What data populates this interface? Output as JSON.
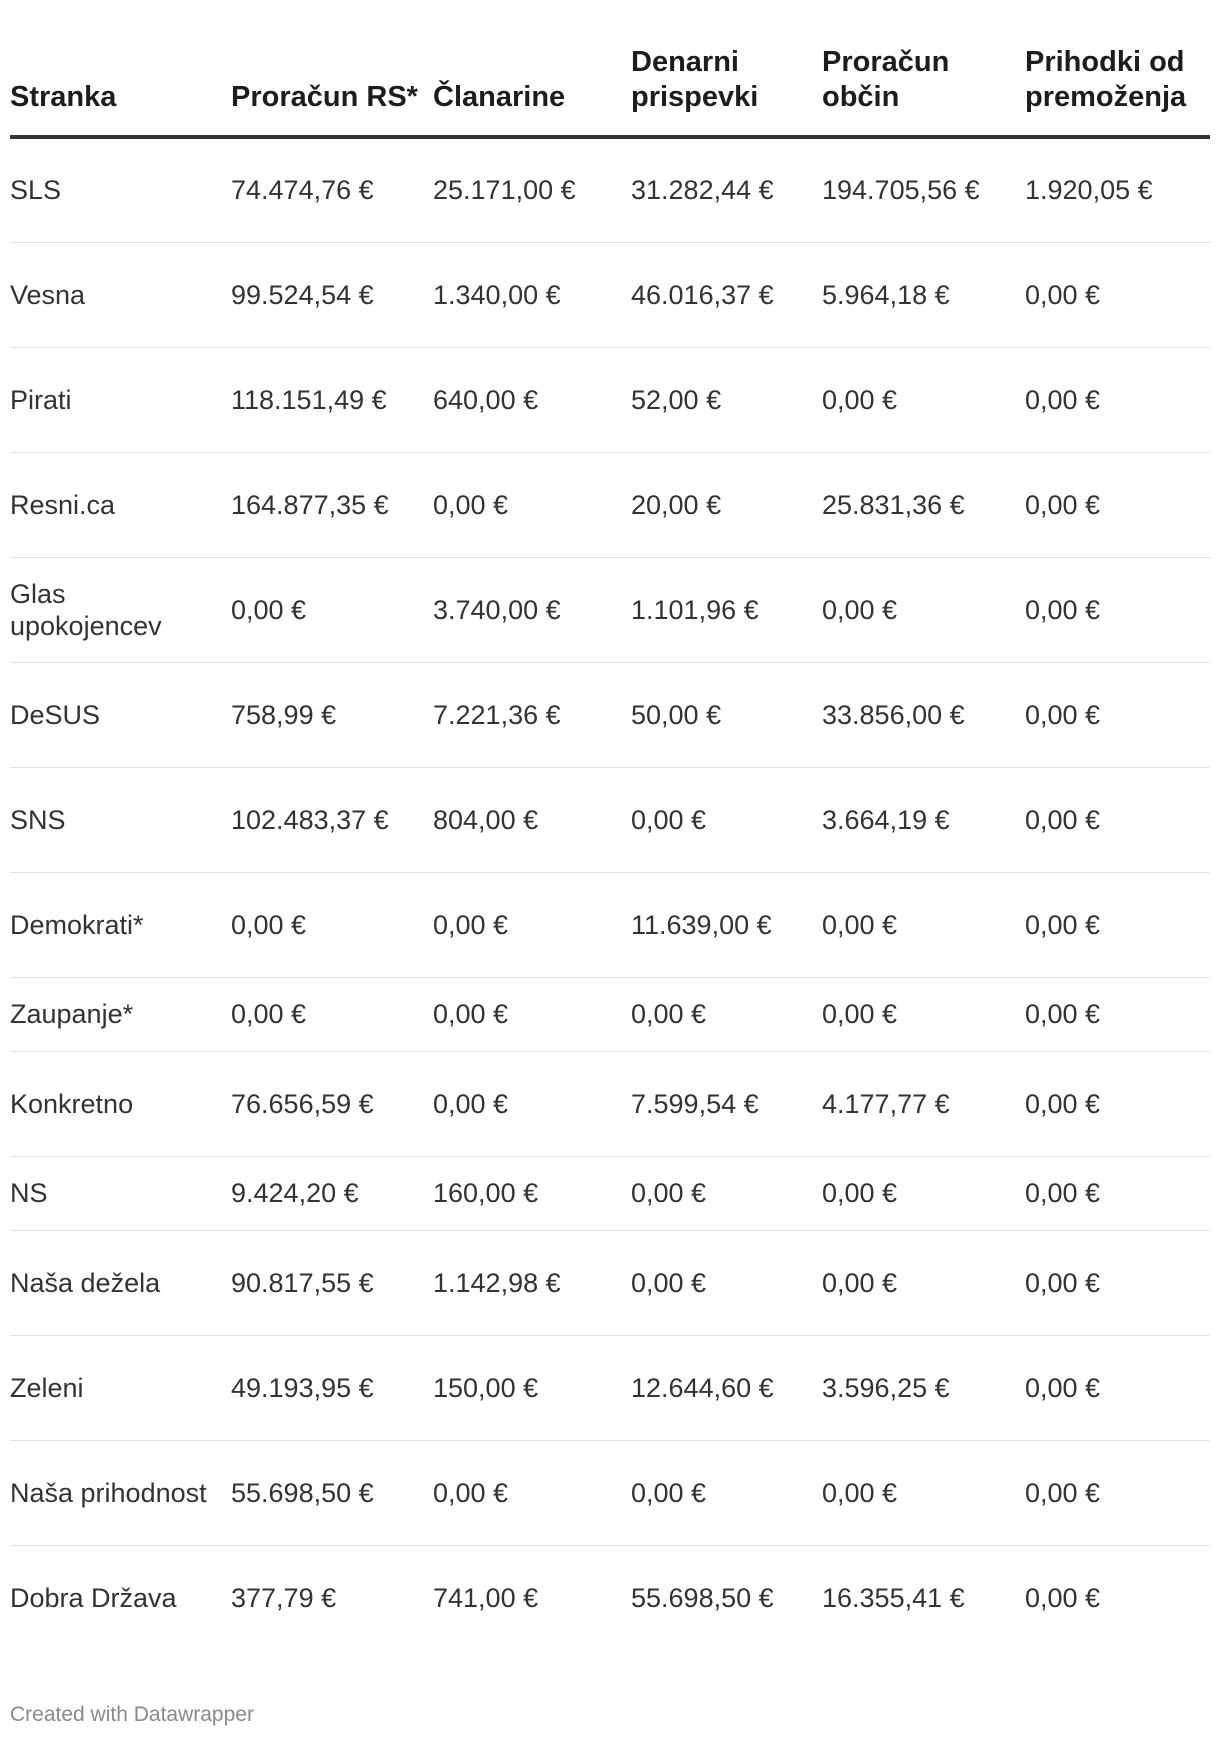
{
  "table": {
    "headers": [
      "Stranka",
      "Proračun RS*",
      "Članarine",
      "Denarni prispevki",
      "Proračun občin",
      "Prihodki od premoženja"
    ],
    "rows": [
      [
        "SLS",
        "74.474,76 €",
        "25.171,00 €",
        "31.282,44 €",
        "194.705,56 €",
        "1.920,05 €"
      ],
      [
        "Vesna",
        "99.524,54 €",
        "1.340,00 €",
        "46.016,37 €",
        "5.964,18 €",
        "0,00 €"
      ],
      [
        "Pirati",
        "118.151,49 €",
        "640,00 €",
        "52,00 €",
        "0,00 €",
        "0,00 €"
      ],
      [
        "Resni.ca",
        "164.877,35 €",
        "0,00 €",
        "20,00 €",
        "25.831,36 €",
        "0,00 €"
      ],
      [
        "Glas upokojencev",
        "0,00 €",
        "3.740,00 €",
        "1.101,96 €",
        "0,00 €",
        "0,00 €"
      ],
      [
        "DeSUS",
        "758,99 €",
        "7.221,36 €",
        "50,00 €",
        "33.856,00 €",
        "0,00 €"
      ],
      [
        "SNS",
        "102.483,37 €",
        "804,00 €",
        "0,00 €",
        "3.664,19 €",
        "0,00 €"
      ],
      [
        "Demokrati*",
        "0,00 €",
        "0,00 €",
        "11.639,00 €",
        "0,00 €",
        "0,00 €"
      ],
      [
        "Zaupanje*",
        "0,00 €",
        "0,00 €",
        "0,00 €",
        "0,00 €",
        "0,00 €"
      ],
      [
        "Konkretno",
        "76.656,59 €",
        "0,00 €",
        "7.599,54 €",
        "4.177,77 €",
        "0,00 €"
      ],
      [
        "NS",
        "9.424,20 €",
        "160,00 €",
        "0,00 €",
        "0,00 €",
        "0,00 €"
      ],
      [
        "Naša dežela",
        "90.817,55 €",
        "1.142,98 €",
        "0,00 €",
        "0,00 €",
        "0,00 €"
      ],
      [
        "Zeleni",
        "49.193,95 €",
        "150,00 €",
        "12.644,60 €",
        "3.596,25 €",
        "0,00 €"
      ],
      [
        "Naša prihodnost",
        "55.698,50 €",
        "0,00 €",
        "0,00 €",
        "0,00 €",
        "0,00 €"
      ],
      [
        "Dobra Država",
        "377,79 €",
        "741,00 €",
        "55.698,50 €",
        "16.355,41 €",
        "0,00 €"
      ]
    ]
  },
  "footer": {
    "credit": "Created with Datawrapper"
  }
}
